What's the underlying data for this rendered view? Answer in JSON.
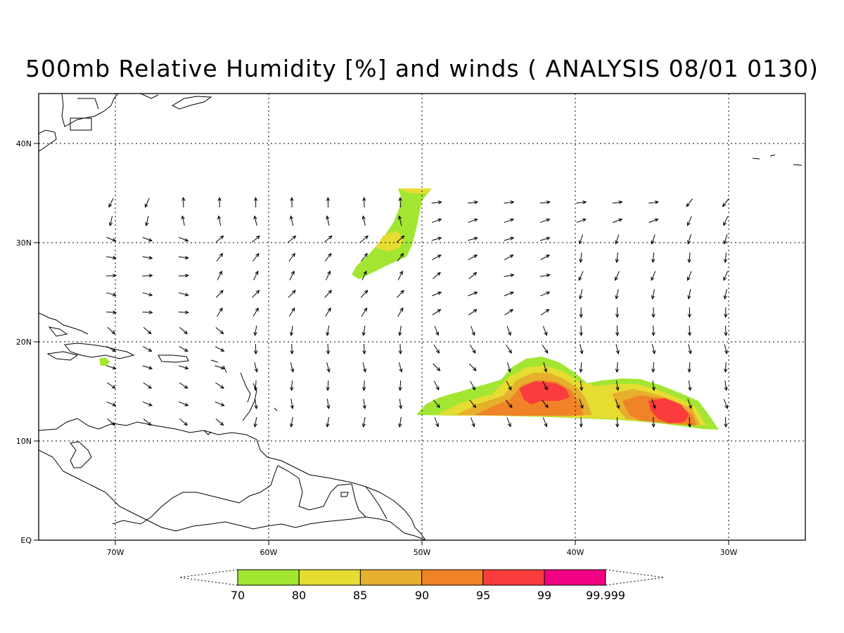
{
  "title": "500mb Relative Humidity [%] and winds ( ANALYSIS 08/01 0130)",
  "map": {
    "lon_range": [
      -75,
      -25
    ],
    "lat_range": [
      0,
      45
    ],
    "lon_ticks": [
      "70W",
      "60W",
      "50W",
      "40W",
      "30W"
    ],
    "lat_ticks": [
      "EQ",
      "10N",
      "20N",
      "30N",
      "40N"
    ],
    "grid": "dotted"
  },
  "colorbar": {
    "levels": [
      "70",
      "80",
      "85",
      "90",
      "95",
      "99",
      "99.999"
    ],
    "colors": [
      "#a2e632",
      "#e6dc32",
      "#e6af2d",
      "#f08228",
      "#fa3c3c",
      "#f00082"
    ]
  },
  "colors": {
    "land_outline": "#000000",
    "arrows": "#000000"
  }
}
